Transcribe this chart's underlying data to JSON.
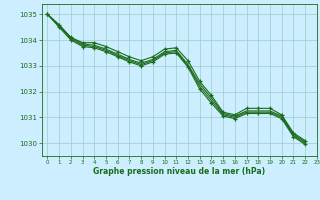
{
  "bg_color": "#cceeff",
  "grid_color": "#99cccc",
  "line_color": "#1a6b1a",
  "marker_color": "#1a6b1a",
  "xlabel": "Graphe pression niveau de la mer (hPa)",
  "xlabel_color": "#1a6b1a",
  "tick_color": "#1a6b1a",
  "ylim": [
    1029.5,
    1035.4
  ],
  "xlim": [
    -0.5,
    23
  ],
  "yticks": [
    1030,
    1031,
    1032,
    1033,
    1034,
    1035
  ],
  "xticks": [
    0,
    1,
    2,
    3,
    4,
    5,
    6,
    7,
    8,
    9,
    10,
    11,
    12,
    13,
    14,
    15,
    16,
    17,
    18,
    19,
    20,
    21,
    22,
    23
  ],
  "series": [
    {
      "x": [
        0,
        1,
        2,
        3,
        4,
        5,
        6,
        7,
        8,
        9,
        10,
        11,
        12,
        13,
        14,
        15,
        16,
        17,
        18,
        19,
        20,
        21,
        22
      ],
      "y": [
        1035.0,
        1034.6,
        1034.1,
        1033.9,
        1033.9,
        1033.75,
        1033.55,
        1033.35,
        1033.2,
        1033.35,
        1033.65,
        1033.7,
        1033.2,
        1032.4,
        1031.85,
        1031.2,
        1031.1,
        1031.35,
        1031.35,
        1031.35,
        1031.1,
        1030.4,
        1030.1
      ],
      "has_marker": true
    },
    {
      "x": [
        0,
        1,
        2,
        3,
        4,
        5,
        6,
        7,
        8,
        9,
        10,
        11,
        12,
        13,
        14,
        15,
        16,
        17,
        18,
        19,
        20,
        21,
        22
      ],
      "y": [
        1035.0,
        1034.55,
        1034.1,
        1033.85,
        1033.8,
        1033.65,
        1033.45,
        1033.25,
        1033.1,
        1033.25,
        1033.55,
        1033.6,
        1033.05,
        1032.3,
        1031.75,
        1031.15,
        1031.05,
        1031.25,
        1031.25,
        1031.25,
        1031.05,
        1030.35,
        1030.05
      ],
      "has_marker": false
    },
    {
      "x": [
        0,
        1,
        2,
        3,
        4,
        5,
        6,
        7,
        8,
        9,
        10,
        11,
        12,
        13,
        14,
        15,
        16,
        17,
        18,
        19,
        20,
        21,
        22
      ],
      "y": [
        1035.0,
        1034.55,
        1034.05,
        1033.8,
        1033.75,
        1033.6,
        1033.4,
        1033.2,
        1033.05,
        1033.2,
        1033.5,
        1033.55,
        1033.0,
        1032.2,
        1031.65,
        1031.1,
        1031.0,
        1031.2,
        1031.2,
        1031.2,
        1031.0,
        1030.3,
        1030.0
      ],
      "has_marker": false
    },
    {
      "x": [
        0,
        1,
        2,
        3,
        4,
        5,
        6,
        7,
        8,
        9,
        10,
        11,
        12,
        13,
        14,
        15,
        16,
        17,
        18,
        19,
        20,
        21,
        22
      ],
      "y": [
        1035.0,
        1034.5,
        1034.0,
        1033.75,
        1033.7,
        1033.55,
        1033.35,
        1033.15,
        1033.0,
        1033.15,
        1033.45,
        1033.5,
        1032.95,
        1032.1,
        1031.55,
        1031.05,
        1030.95,
        1031.15,
        1031.15,
        1031.15,
        1030.95,
        1030.25,
        1029.95
      ],
      "has_marker": true
    }
  ]
}
